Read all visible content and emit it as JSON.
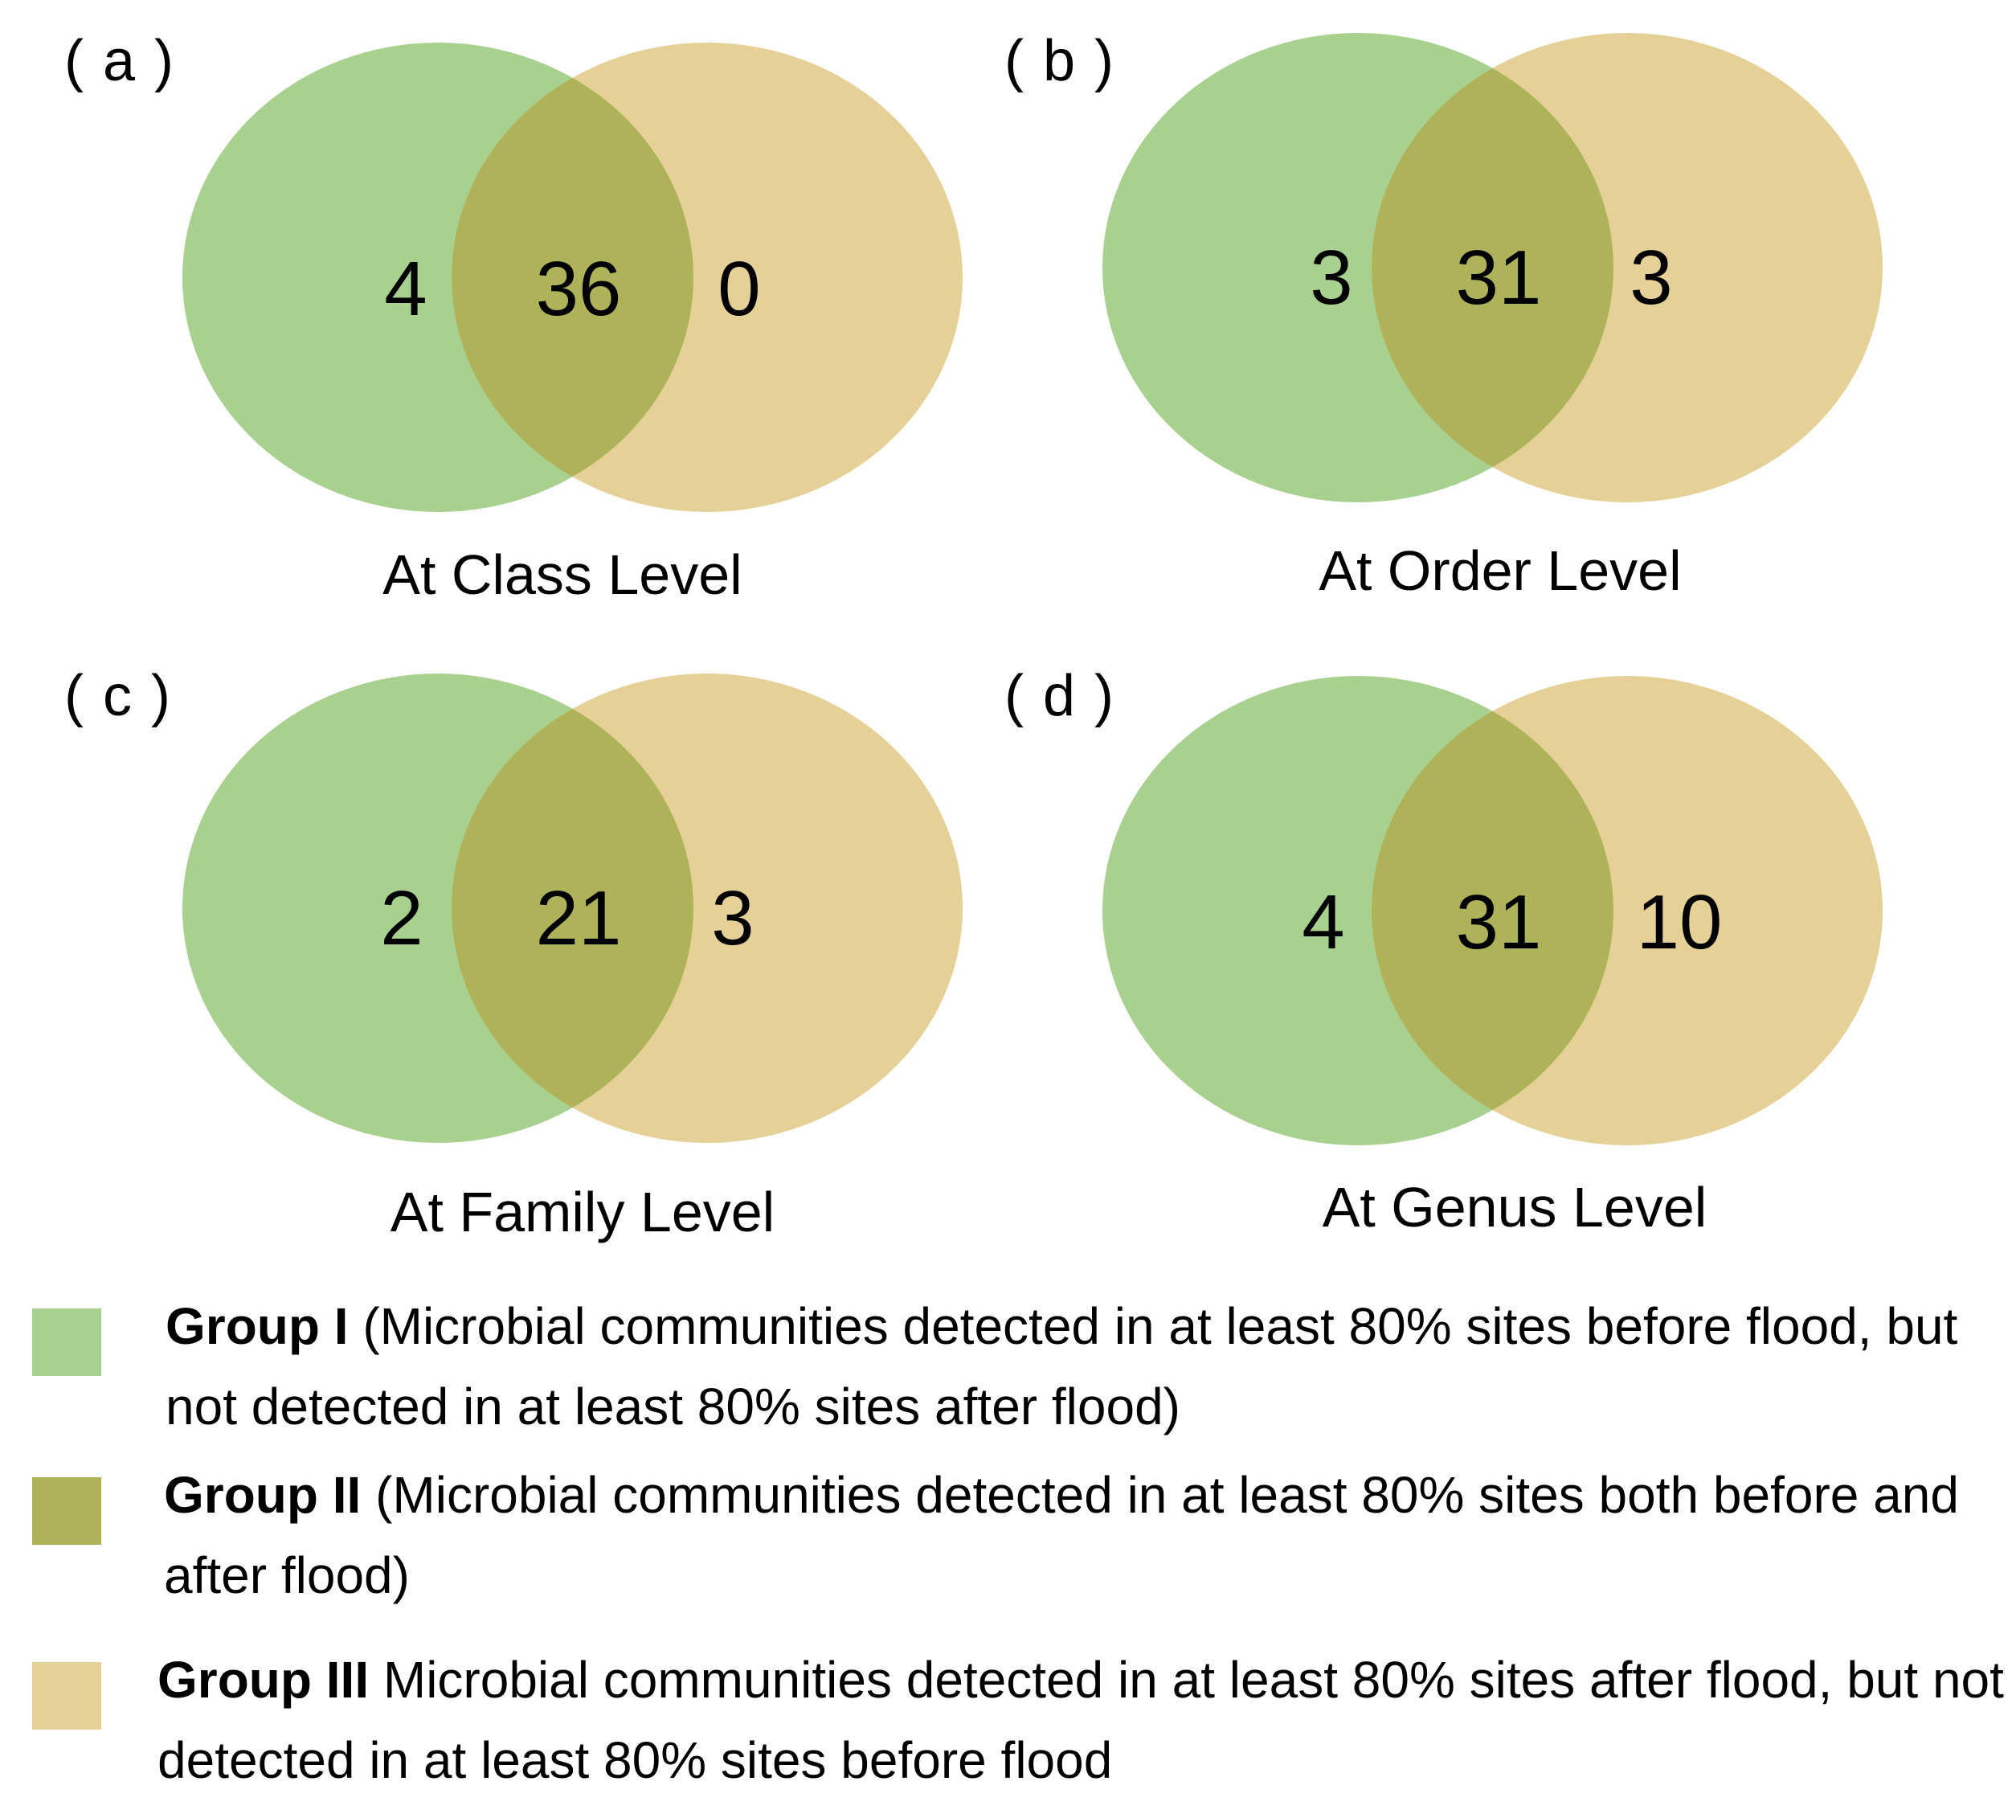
{
  "colors": {
    "group_1": "#a8d08e",
    "group_2": "#aeb359",
    "group_3": "#e5d197"
  },
  "panels": [
    {
      "label": "( a )",
      "caption": "At Class Level",
      "counts": {
        "left_only": "4",
        "overlap": "36",
        "right_only": "0"
      }
    },
    {
      "label": "( b )",
      "caption": "At Order Level",
      "counts": {
        "left_only": "3",
        "overlap": "31",
        "right_only": "3"
      }
    },
    {
      "label": "( c )",
      "caption": "At Family Level",
      "counts": {
        "left_only": "2",
        "overlap": "21",
        "right_only": "3"
      }
    },
    {
      "label": "( d )",
      "caption": "At Genus Level",
      "counts": {
        "left_only": "4",
        "overlap": "31",
        "right_only": "10"
      }
    }
  ],
  "legend": [
    {
      "name": "Group I",
      "description": " (Microbial communities detected in at least 80% sites before flood, but not detected in at least 80% sites after flood)",
      "color_key": "group_1"
    },
    {
      "name": "Group II",
      "description": " (Microbial communities detected in at least 80% sites both before and after flood)",
      "color_key": "group_2"
    },
    {
      "name": "Group III",
      "description": " Microbial communities detected in at least 80% sites after flood, but not detected in at least 80% sites before flood",
      "color_key": "group_3"
    }
  ]
}
